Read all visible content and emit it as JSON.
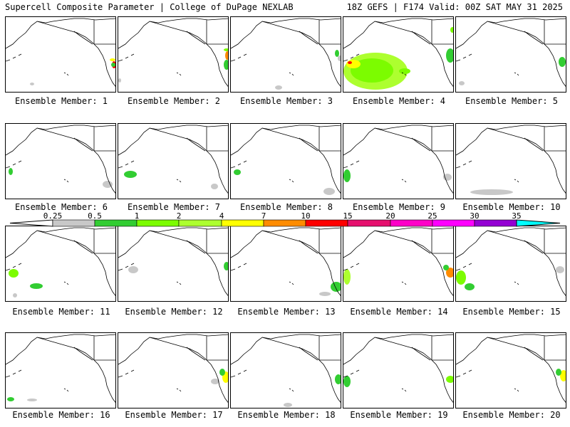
{
  "header": {
    "title": "Supercell Composite Parameter | College of DuPage NEXLAB",
    "run_info": "18Z GEFS | F174 Valid: 00Z SAT MAY 31 2025"
  },
  "member_label_prefix": "Ensemble Member: ",
  "members": [
    1,
    2,
    3,
    4,
    5,
    6,
    7,
    8,
    9,
    10,
    11,
    12,
    13,
    14,
    15,
    16,
    17,
    18,
    19,
    20
  ],
  "colorbar": {
    "tick_labels": [
      "0.25",
      "0.5",
      "1",
      "2",
      "4",
      "7",
      "10",
      "15",
      "20",
      "25",
      "30",
      "35"
    ],
    "colors": [
      "#c8c8c8",
      "#32cd32",
      "#7cfc00",
      "#adff2f",
      "#ffff00",
      "#ff8c00",
      "#ff0000",
      "#e6106e",
      "#ff00c8",
      "#ff00ff",
      "#9400d3",
      "#9370db",
      "#00ffff"
    ]
  }
}
